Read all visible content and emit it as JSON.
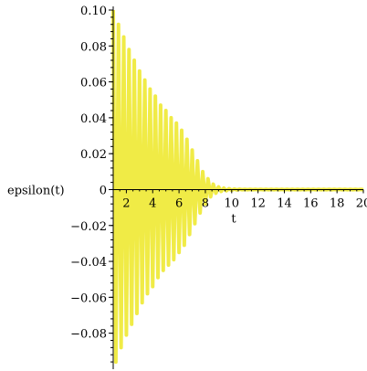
{
  "chart_data": {
    "type": "line",
    "title": "",
    "xlabel": "t",
    "ylabel": "epsilon(t)",
    "xlim": [
      1,
      20
    ],
    "ylim": [
      -0.098,
      0.1
    ],
    "x_ticks": [
      2,
      4,
      6,
      8,
      10,
      12,
      14,
      16,
      18,
      20
    ],
    "x_tick_labels": [
      "2",
      "4",
      "6",
      "8",
      "10",
      "12",
      "14",
      "16",
      "18",
      "20"
    ],
    "y_ticks": [
      0.1,
      0.08,
      0.06,
      0.04,
      0.02,
      0,
      -0.02,
      -0.04,
      -0.06,
      -0.08
    ],
    "y_tick_labels": [
      "0.10",
      "0.08",
      "0.06",
      "0.04",
      "0.02",
      "0",
      "−0.02",
      "−0.04",
      "−0.06",
      "−0.08"
    ],
    "grid": false,
    "series": [
      {
        "color": "#f0eb46",
        "x": [
          1,
          1.2,
          1.4,
          1.6,
          1.8,
          2,
          2.2,
          2.4,
          2.6,
          2.8,
          3,
          3.2,
          3.4,
          3.6,
          3.8,
          4,
          4.2,
          4.4,
          4.6,
          4.8,
          5,
          5.2,
          5.4,
          5.6,
          5.8,
          6,
          6.2,
          6.4,
          6.6,
          6.8,
          7,
          7.2,
          7.4,
          7.6,
          7.8,
          8,
          8.2,
          8.4,
          8.6,
          8.8,
          9,
          9.2,
          9.4,
          9.6,
          9.8,
          10,
          10.2,
          10.4,
          10.6,
          10.8,
          11,
          11.2,
          11.4,
          11.6,
          11.8,
          12,
          12.2,
          12.4,
          12.6,
          12.8,
          13,
          13.2,
          13.4,
          13.6,
          13.8,
          14,
          14.2,
          14.4,
          14.6,
          14.8,
          15,
          15.2,
          15.4,
          15.6,
          15.8,
          16,
          16.2,
          16.4,
          16.6,
          16.8,
          17,
          17.2,
          17.4,
          17.6,
          17.8,
          18,
          18.2,
          18.4,
          18.6,
          18.8,
          19,
          19.2,
          19.4,
          19.6,
          19.8,
          20
        ],
        "y": [
          0.1,
          -0.096,
          0.092,
          -0.088,
          0.085,
          -0.081,
          0.078,
          -0.075,
          0.072,
          -0.069,
          0.066,
          -0.063,
          0.061,
          -0.058,
          0.056,
          -0.054,
          0.052,
          -0.049,
          0.047,
          -0.045,
          0.044,
          -0.042,
          0.04,
          -0.039,
          0.037,
          -0.035,
          0.033,
          -0.031,
          0.028,
          -0.025,
          0.022,
          -0.019,
          0.016,
          -0.013,
          0.01,
          -0.008,
          0.006,
          -0.004,
          0.003,
          -0.002,
          0.0015,
          -0.001,
          0.0008,
          -0.0006,
          0.0005,
          -0.0004,
          0.0003,
          -0.0002,
          0.0002,
          -0.0001,
          0.0001,
          -0.0001,
          0.0001,
          -0.0001,
          0.0001,
          -0.0001,
          0.0001,
          -0.0001,
          0.0001,
          -0.0001,
          0.0001,
          -0.0001,
          0.0001,
          -0.0001,
          0.0001,
          -0.0001,
          0.0001,
          -0.0001,
          0.0001,
          -0.0001,
          0.0001,
          -0.0001,
          0.0001,
          -0.0001,
          0.0001,
          -0.0001,
          0.0001,
          -0.0001,
          0.0001,
          -0.0001,
          0.0001,
          -0.0001,
          0.0001,
          -0.0001,
          0.0001,
          -0.0001,
          0.0001,
          -0.0001,
          0.0001,
          -0.0001,
          0.0001,
          -0.0001,
          0.0001,
          -0.0001,
          0.0001,
          -0.0001
        ]
      }
    ]
  }
}
